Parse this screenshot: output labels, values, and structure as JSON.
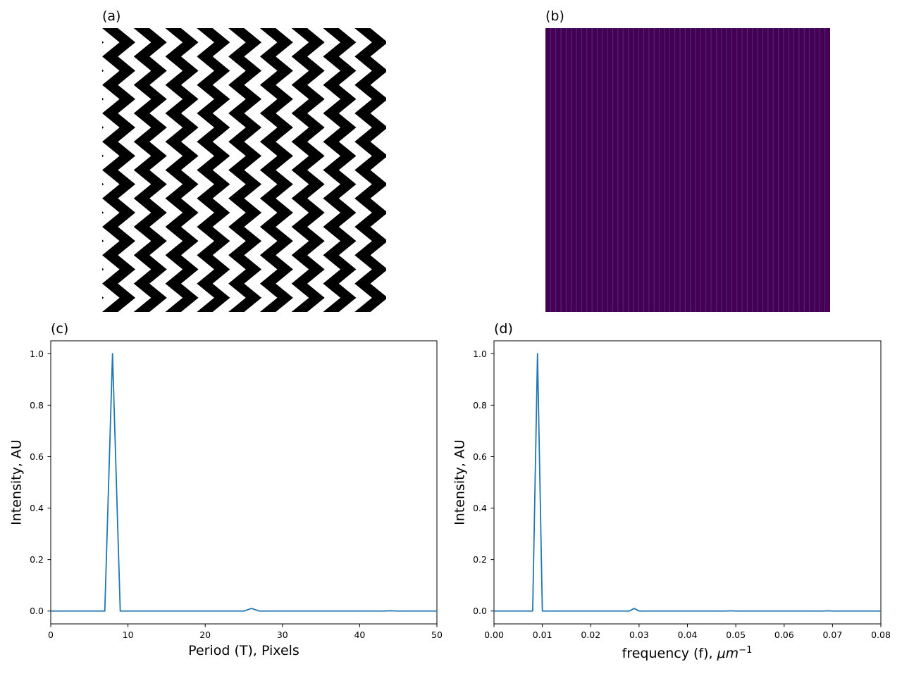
{
  "panels": {
    "a": {
      "label": "(a)"
    },
    "b": {
      "label": "(b)"
    }
  },
  "image_a": {
    "type": "zigzag-pattern",
    "colors": [
      "#000000",
      "#ffffff"
    ],
    "columns": 9,
    "rows": 10
  },
  "image_b": {
    "type": "spectrum-image",
    "background": "#440154",
    "line_color": "#5a3a8c",
    "columns": 55
  },
  "chart_data": [
    {
      "type": "line",
      "panel_label": "(c)",
      "xlabel": "Period (T), Pixels",
      "ylabel": "Intensity, AU",
      "xlim": [
        0,
        50
      ],
      "ylim": [
        -0.05,
        1.05
      ],
      "xticks": [
        0,
        10,
        20,
        30,
        40,
        50
      ],
      "xtick_labels": [
        "0",
        "10",
        "20",
        "30",
        "40",
        "50"
      ],
      "yticks": [
        0.0,
        0.2,
        0.4,
        0.6,
        0.8,
        1.0
      ],
      "ytick_labels": [
        "0.0",
        "0.2",
        "0.4",
        "0.6",
        "0.8",
        "1.0"
      ],
      "grid": false,
      "line_color": "#1f77b4",
      "series": [
        {
          "x": [
            0,
            7,
            8,
            9,
            25,
            26,
            27,
            43,
            44,
            45,
            50
          ],
          "y": [
            0,
            0,
            1.0,
            0,
            0,
            0.01,
            0,
            0,
            0.001,
            0,
            0
          ]
        }
      ]
    },
    {
      "type": "line",
      "panel_label": "(d)",
      "xlabel": "frequency (f), ",
      "xlabel_unit": "μm",
      "xlabel_exp": "−1",
      "ylabel": "Intensity, AU",
      "xlim": [
        0,
        0.08
      ],
      "ylim": [
        -0.05,
        1.05
      ],
      "xticks": [
        0,
        0.01,
        0.02,
        0.03,
        0.04,
        0.05,
        0.06,
        0.07,
        0.08
      ],
      "xtick_labels": [
        "0.00",
        "0.01",
        "0.02",
        "0.03",
        "0.04",
        "0.05",
        "0.06",
        "0.07",
        "0.08"
      ],
      "yticks": [
        0.0,
        0.2,
        0.4,
        0.6,
        0.8,
        1.0
      ],
      "ytick_labels": [
        "0.0",
        "0.2",
        "0.4",
        "0.6",
        "0.8",
        "1.0"
      ],
      "grid": false,
      "line_color": "#1f77b4",
      "series": [
        {
          "x": [
            0,
            0.008,
            0.009,
            0.01,
            0.028,
            0.029,
            0.03,
            0.048,
            0.049,
            0.05,
            0.068,
            0.069,
            0.07,
            0.08
          ],
          "y": [
            0,
            0,
            1.0,
            0,
            0,
            0.01,
            0,
            0,
            0.001,
            0,
            0,
            0.001,
            0,
            0
          ]
        }
      ]
    }
  ]
}
